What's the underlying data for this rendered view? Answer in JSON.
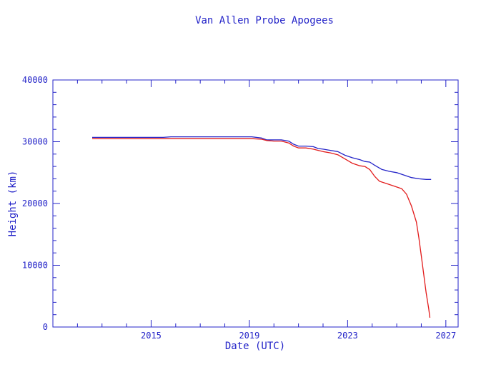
{
  "chart_data": {
    "type": "line",
    "title": "Van Allen Probe Apogees",
    "xlabel": "Date (UTC)",
    "ylabel": "Height (km)",
    "xlim": [
      2011,
      2027.5
    ],
    "ylim": [
      0,
      40000
    ],
    "x_ticks": [
      {
        "value": 2015,
        "label": "2015"
      },
      {
        "value": 2019,
        "label": "2019"
      },
      {
        "value": 2023,
        "label": "2023"
      },
      {
        "value": 2027,
        "label": "2027"
      }
    ],
    "y_ticks": [
      {
        "value": 0,
        "label": "0"
      },
      {
        "value": 10000,
        "label": "10000"
      },
      {
        "value": 20000,
        "label": "20000"
      },
      {
        "value": 30000,
        "label": "30000"
      },
      {
        "value": 40000,
        "label": "40000"
      }
    ],
    "grid": false,
    "series": [
      {
        "color": "#2323c8",
        "x": [
          2012.6,
          2013.5,
          2014.5,
          2015.5,
          2015.8,
          2016.5,
          2017.5,
          2018.5,
          2019.1,
          2019.5,
          2019.7,
          2020.0,
          2020.3,
          2020.6,
          2020.8,
          2021.0,
          2021.3,
          2021.6,
          2021.8,
          2022.0,
          2022.3,
          2022.6,
          2022.9,
          2023.2,
          2023.5,
          2023.7,
          2023.9,
          2024.1,
          2024.4,
          2024.7,
          2025.0,
          2025.3,
          2025.6,
          2025.9,
          2026.2,
          2026.4
        ],
        "values": [
          30700,
          30700,
          30700,
          30700,
          30800,
          30800,
          30800,
          30800,
          30800,
          30600,
          30300,
          30300,
          30300,
          30100,
          29600,
          29300,
          29300,
          29200,
          28900,
          28800,
          28600,
          28400,
          27800,
          27400,
          27100,
          26800,
          26700,
          26200,
          25500,
          25200,
          25000,
          24600,
          24200,
          24000,
          23900,
          23900
        ]
      },
      {
        "color": "#e21b1b",
        "x": [
          2012.6,
          2013.5,
          2014.5,
          2015.5,
          2016.5,
          2017.5,
          2018.5,
          2019.1,
          2019.5,
          2019.7,
          2020.0,
          2020.3,
          2020.6,
          2020.8,
          2021.0,
          2021.3,
          2021.6,
          2021.8,
          2022.0,
          2022.3,
          2022.6,
          2022.9,
          2023.2,
          2023.5,
          2023.7,
          2023.9,
          2024.1,
          2024.3,
          2024.6,
          2024.9,
          2025.2,
          2025.4,
          2025.6,
          2025.8,
          2025.9,
          2026.0,
          2026.1,
          2026.2,
          2026.3,
          2026.35
        ],
        "values": [
          30500,
          30500,
          30500,
          30500,
          30500,
          30500,
          30500,
          30500,
          30400,
          30200,
          30100,
          30100,
          29800,
          29300,
          29000,
          29000,
          28800,
          28600,
          28400,
          28200,
          27900,
          27200,
          26500,
          26100,
          26000,
          25500,
          24400,
          23600,
          23200,
          22800,
          22400,
          21500,
          19600,
          17000,
          14500,
          11500,
          8500,
          5500,
          3000,
          1500
        ]
      }
    ]
  }
}
